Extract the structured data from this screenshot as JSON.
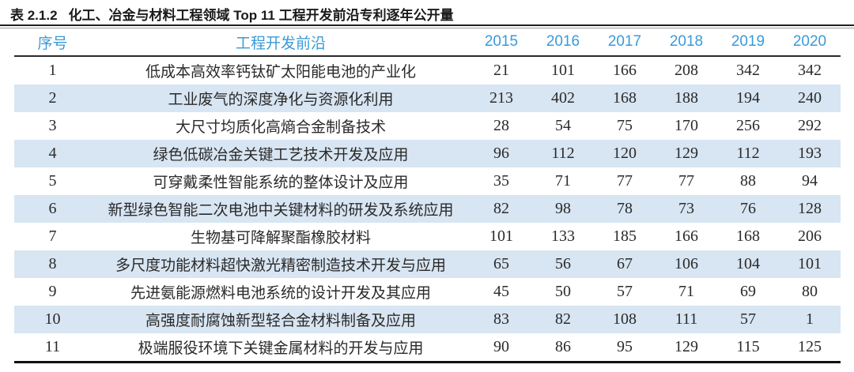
{
  "caption": {
    "number": "表 2.1.2",
    "text": "化工、冶金与材料工程领域 Top 11 工程开发前沿专利逐年公开量"
  },
  "colors": {
    "accent_blue": "#3a9ad8",
    "stripe_blue": "#d8e5f2",
    "rule_dark": "#1f1f1f",
    "text_dark": "#2a2a2a"
  },
  "table": {
    "columns": [
      "序号",
      "工程开发前沿",
      "2015",
      "2016",
      "2017",
      "2018",
      "2019",
      "2020"
    ],
    "rows": [
      {
        "no": "1",
        "name": "低成本高效率钙钛矿太阳能电池的产业化",
        "values": [
          21,
          101,
          166,
          208,
          342,
          342
        ]
      },
      {
        "no": "2",
        "name": "工业废气的深度净化与资源化利用",
        "values": [
          213,
          402,
          168,
          188,
          194,
          240
        ]
      },
      {
        "no": "3",
        "name": "大尺寸均质化高熵合金制备技术",
        "values": [
          28,
          54,
          75,
          170,
          256,
          292
        ]
      },
      {
        "no": "4",
        "name": "绿色低碳冶金关键工艺技术开发及应用",
        "values": [
          96,
          112,
          120,
          129,
          112,
          193
        ]
      },
      {
        "no": "5",
        "name": "可穿戴柔性智能系统的整体设计及应用",
        "values": [
          35,
          71,
          77,
          77,
          88,
          94
        ]
      },
      {
        "no": "6",
        "name": "新型绿色智能二次电池中关键材料的研发及系统应用",
        "values": [
          82,
          98,
          78,
          73,
          76,
          128
        ]
      },
      {
        "no": "7",
        "name": "生物基可降解聚酯橡胶材料",
        "values": [
          101,
          133,
          185,
          166,
          168,
          206
        ]
      },
      {
        "no": "8",
        "name": "多尺度功能材料超快激光精密制造技术开发与应用",
        "values": [
          65,
          56,
          67,
          106,
          104,
          101
        ]
      },
      {
        "no": "9",
        "name": "先进氨能源燃料电池系统的设计开发及其应用",
        "values": [
          45,
          50,
          57,
          71,
          69,
          80
        ]
      },
      {
        "no": "10",
        "name": "高强度耐腐蚀新型轻合金材料制备及应用",
        "values": [
          83,
          82,
          108,
          111,
          57,
          1
        ]
      },
      {
        "no": "11",
        "name": "极端服役环境下关键金属材料的开发与应用",
        "values": [
          90,
          86,
          95,
          129,
          115,
          125
        ]
      }
    ]
  }
}
